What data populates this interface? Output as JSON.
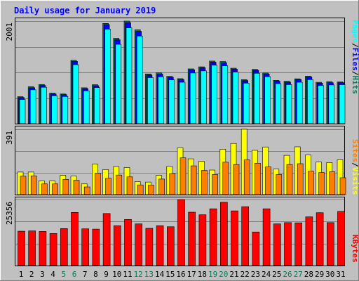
{
  "colors": {
    "background": "#c0c0c0",
    "title": "#0000ff",
    "gridline": "#808080",
    "hits": "#00805c",
    "files": "#0000ff",
    "pages": "#00ffff",
    "visits": "#ffff00",
    "sites": "#ff8000",
    "kbytes": "#ff0000",
    "weekend_label": "#00805c",
    "weekday_label": "#000000",
    "separator": "#000000"
  },
  "chart_data": [
    {
      "type": "bar",
      "title": "Daily usage for January 2019",
      "panel": "hits-files-pages",
      "ymax_label": "2001",
      "ymax": 2001,
      "categories": [
        "1",
        "2",
        "3",
        "4",
        "5",
        "6",
        "7",
        "8",
        "9",
        "10",
        "11",
        "12",
        "13",
        "14",
        "15",
        "16",
        "17",
        "18",
        "19",
        "20",
        "21",
        "22",
        "23",
        "24",
        "25",
        "26",
        "27",
        "28",
        "29",
        "30",
        "31"
      ],
      "weekend_days": [
        "5",
        "6",
        "12",
        "13",
        "19",
        "20",
        "26",
        "27"
      ],
      "legend": [
        "Pages",
        "/",
        "Files",
        "/",
        "Hits"
      ],
      "series": [
        {
          "name": "Hits",
          "values": [
            526,
            720,
            764,
            595,
            579,
            1236,
            700,
            760,
            1956,
            1665,
            2001,
            1831,
            970,
            991,
            923,
            878,
            1069,
            1109,
            1221,
            1212,
            1082,
            858,
            1060,
            988,
            845,
            826,
            875,
            926,
            807,
            818,
            814
          ]
        },
        {
          "name": "Files",
          "values": [
            510,
            700,
            745,
            580,
            565,
            1215,
            680,
            740,
            1933,
            1637,
            1970,
            1800,
            950,
            970,
            905,
            860,
            1050,
            1090,
            1200,
            1190,
            1063,
            840,
            1040,
            970,
            830,
            810,
            860,
            910,
            790,
            800,
            800
          ]
        },
        {
          "name": "Pages",
          "values": [
            470,
            660,
            710,
            544,
            530,
            1150,
            640,
            705,
            1843,
            1548,
            1868,
            1710,
            898,
            915,
            854,
            808,
            988,
            1030,
            1140,
            1129,
            1005,
            790,
            983,
            917,
            781,
            762,
            808,
            859,
            743,
            756,
            761
          ]
        }
      ]
    },
    {
      "type": "bar",
      "panel": "visits-sites",
      "ymax_label": "391",
      "ymax": 391,
      "categories": [
        "1",
        "2",
        "3",
        "4",
        "5",
        "6",
        "7",
        "8",
        "9",
        "10",
        "11",
        "12",
        "13",
        "14",
        "15",
        "16",
        "17",
        "18",
        "19",
        "20",
        "21",
        "22",
        "23",
        "24",
        "25",
        "26",
        "27",
        "28",
        "29",
        "30",
        "31"
      ],
      "legend": [
        "Sites",
        "/",
        "Visits"
      ],
      "series": [
        {
          "name": "Visits",
          "values": [
            135,
            135,
            82,
            82,
            115,
            111,
            64,
            182,
            150,
            168,
            162,
            78,
            75,
            115,
            169,
            280,
            214,
            199,
            147,
            272,
            306,
            391,
            265,
            285,
            153,
            235,
            286,
            237,
            195,
            192,
            209
          ]
        },
        {
          "name": "Sites",
          "values": [
            110,
            112,
            64,
            64,
            91,
            86,
            46,
            128,
            98,
            117,
            106,
            58,
            57,
            93,
            126,
            220,
            172,
            145,
            120,
            194,
            180,
            208,
            188,
            166,
            120,
            180,
            185,
            140,
            132,
            137,
            101
          ]
        }
      ]
    },
    {
      "type": "bar",
      "panel": "kbytes",
      "ymax_label": "25356",
      "ymax": 25356,
      "categories": [
        "1",
        "2",
        "3",
        "4",
        "5",
        "6",
        "7",
        "8",
        "9",
        "10",
        "11",
        "12",
        "13",
        "14",
        "15",
        "16",
        "17",
        "18",
        "19",
        "20",
        "21",
        "22",
        "23",
        "24",
        "25",
        "26",
        "27",
        "28",
        "29",
        "30",
        "31"
      ],
      "legend": [
        "KBytes"
      ],
      "series": [
        {
          "name": "KBytes",
          "values": [
            13200,
            13300,
            13100,
            12300,
            14200,
            20400,
            14100,
            14000,
            20000,
            15300,
            17700,
            16000,
            14300,
            15300,
            14900,
            25356,
            20500,
            19500,
            21800,
            24300,
            21000,
            22600,
            12900,
            21800,
            16000,
            16500,
            16400,
            18700,
            20300,
            16500,
            20800
          ]
        }
      ]
    }
  ]
}
